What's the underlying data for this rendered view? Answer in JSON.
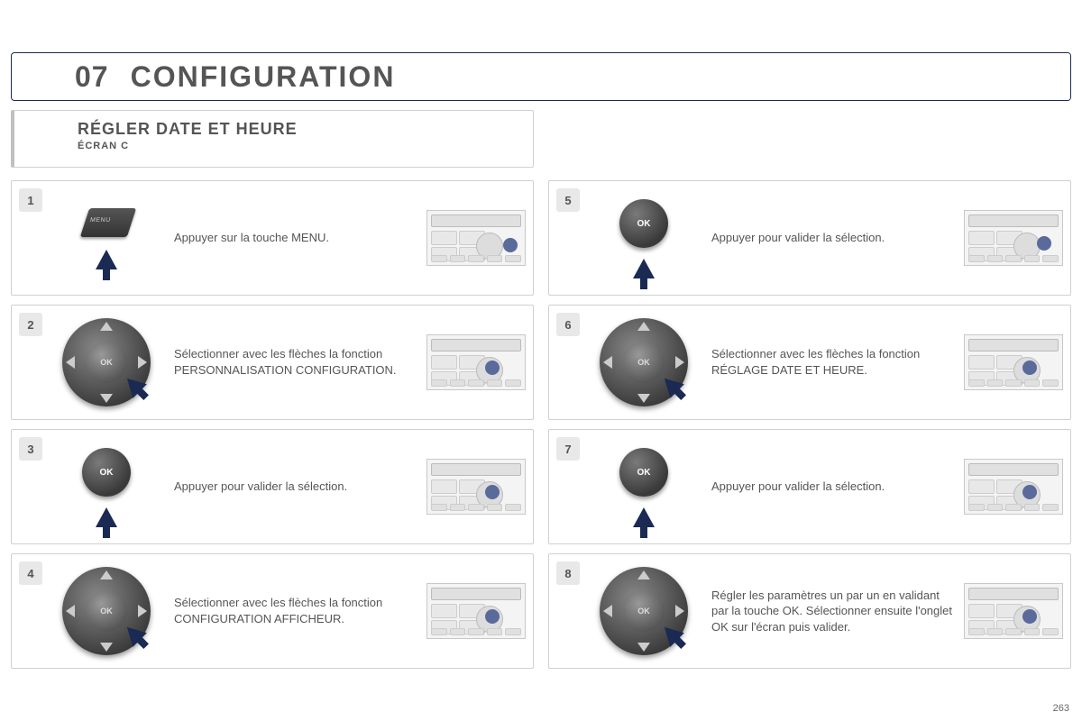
{
  "page_number": "263",
  "header": {
    "section_number": "07",
    "section_title": "CONFIGURATION"
  },
  "subheader": {
    "title": "RÉGLER DATE ET HEURE",
    "screen": "ÉCRAN C"
  },
  "colors": {
    "border_accent": "#1a2a52",
    "body_text": "#555555",
    "panel_border": "#d0d0d0",
    "step_badge_bg": "#e8e8e8",
    "thumb_highlight": "#5a6a9a"
  },
  "steps": [
    {
      "num": "1",
      "icon": "menu",
      "text": "Appuyer sur la touche MENU."
    },
    {
      "num": "2",
      "icon": "dpad",
      "text": "Sélectionner avec les flèches la fonction PERSONNALISATION CONFIGURATION."
    },
    {
      "num": "3",
      "icon": "ok",
      "text": "Appuyer pour valider la sélection."
    },
    {
      "num": "4",
      "icon": "dpad",
      "text": "Sélectionner avec les flèches la fonction CONFIGURATION AFFICHEUR."
    },
    {
      "num": "5",
      "icon": "ok",
      "text": "Appuyer pour valider la sélection."
    },
    {
      "num": "6",
      "icon": "dpad",
      "text": "Sélectionner avec les flèches la fonction RÉGLAGE DATE ET HEURE."
    },
    {
      "num": "7",
      "icon": "ok",
      "text": "Appuyer pour valider la sélection."
    },
    {
      "num": "8",
      "icon": "dpad",
      "text": "Régler les paramètres un par un en validant par la touche OK. Sélectionner ensuite l'onglet OK sur l'écran puis valider."
    }
  ],
  "icon_labels": {
    "menu": "MENU",
    "ok": "OK"
  }
}
